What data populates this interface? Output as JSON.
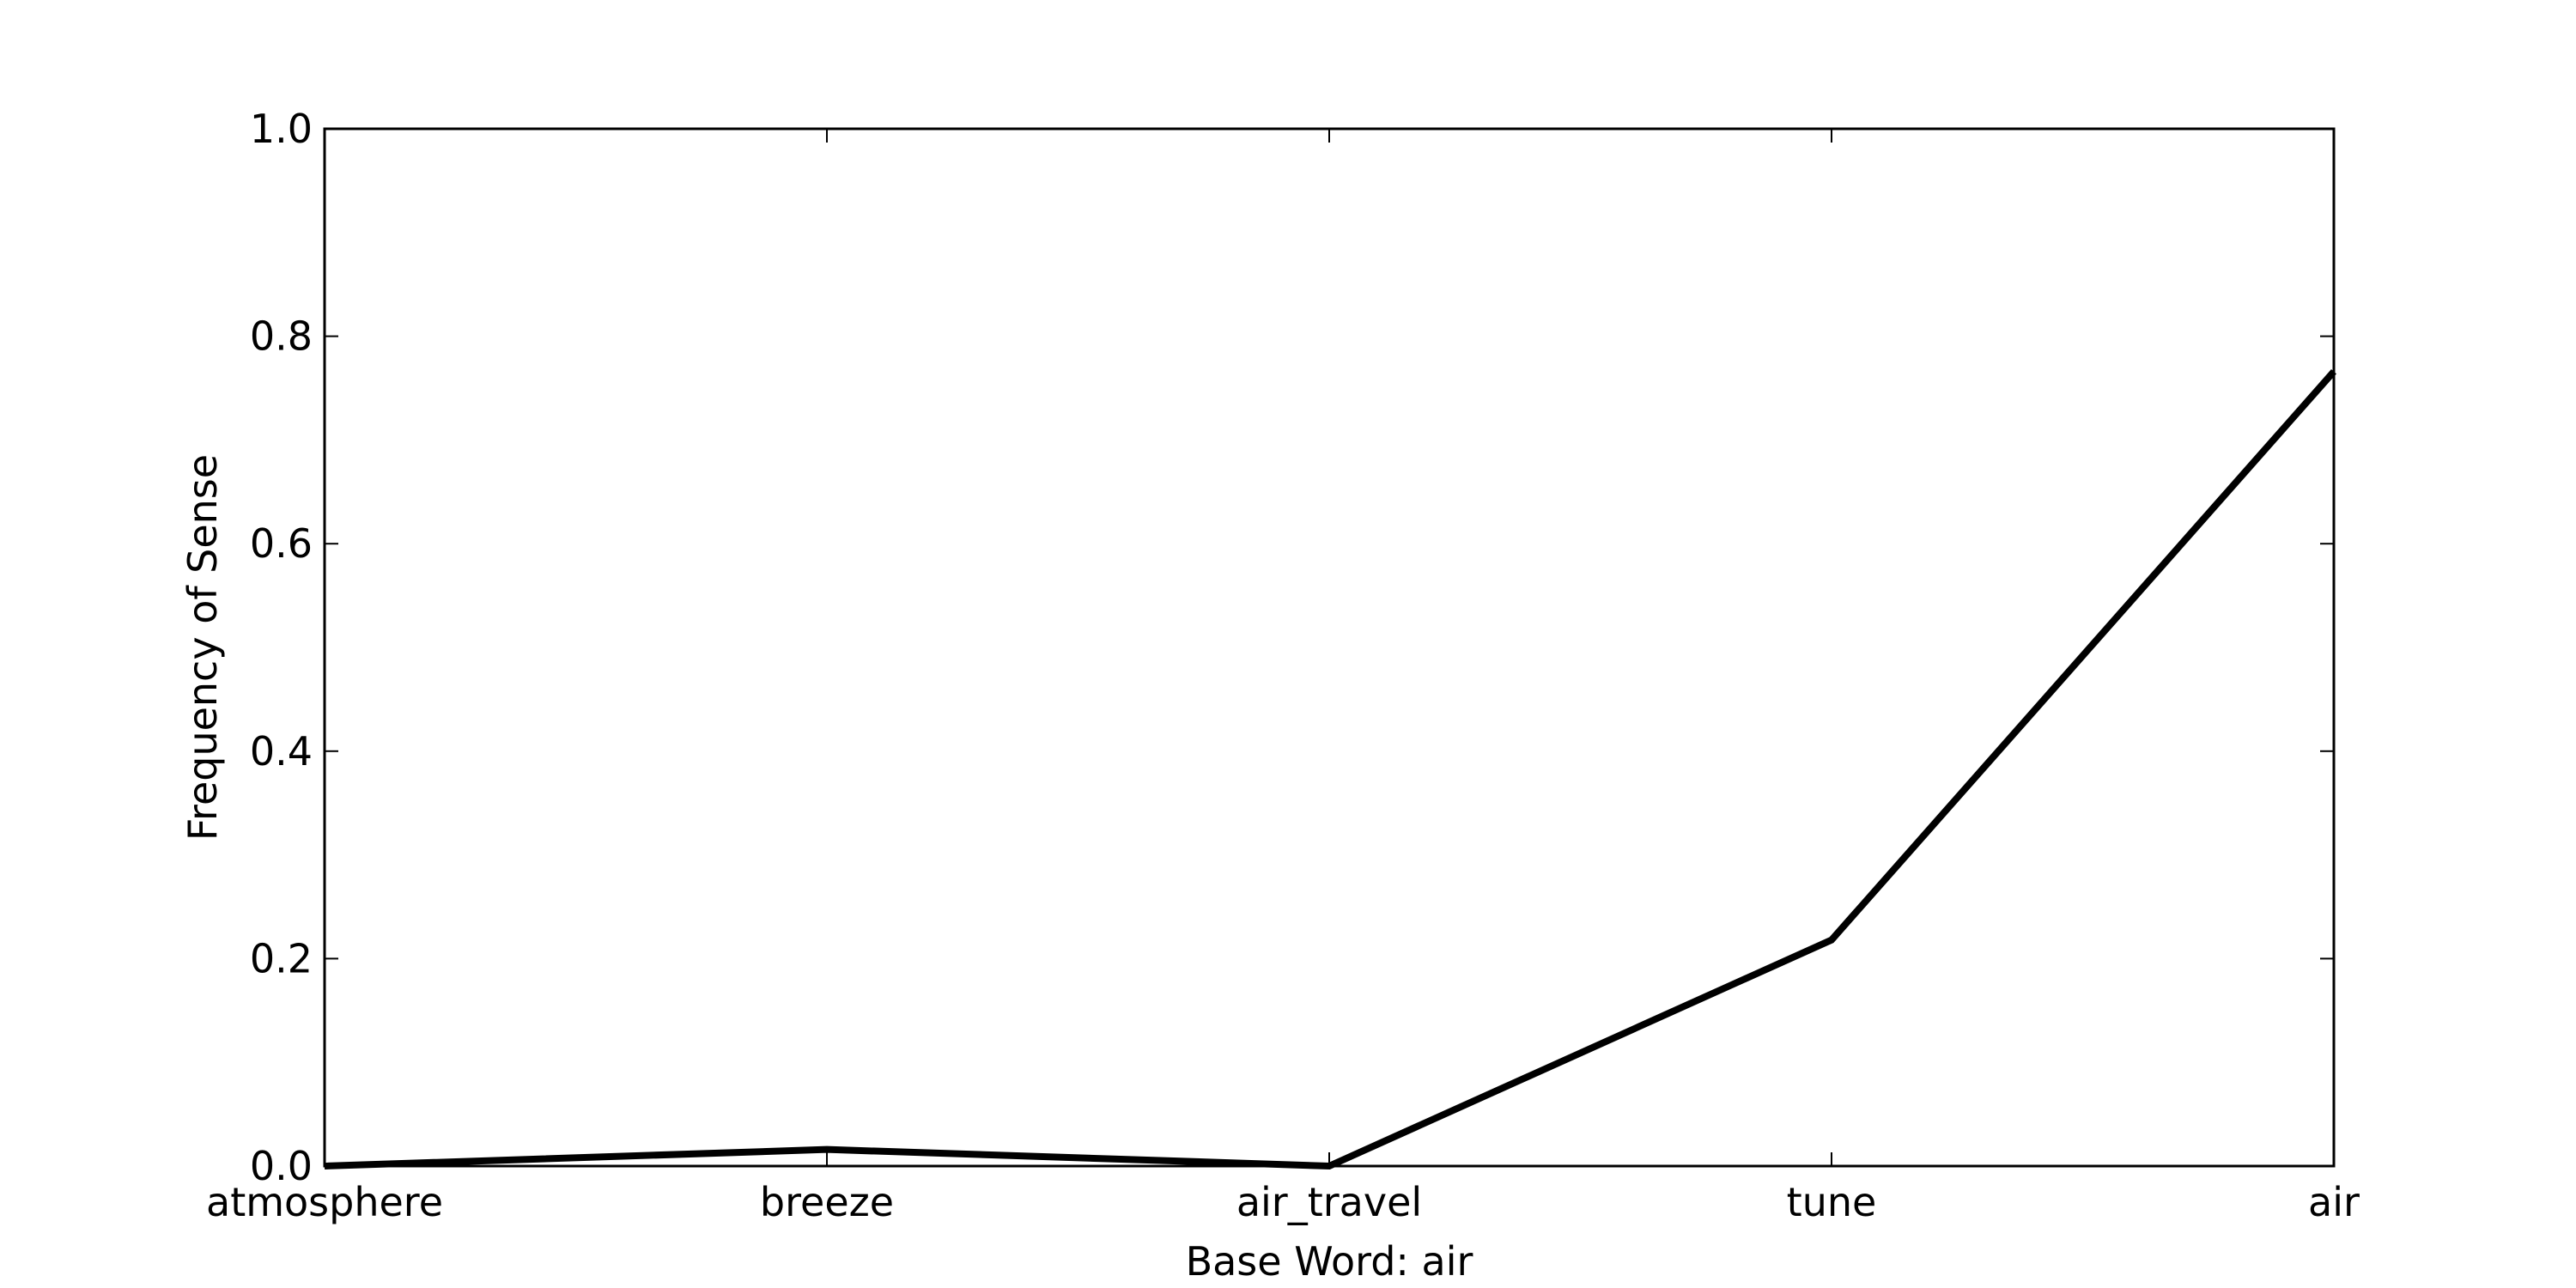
{
  "chart_data": {
    "type": "line",
    "title": "",
    "xlabel": "Base Word: air",
    "ylabel": "Frequency of Sense",
    "categories": [
      "atmosphere",
      "breeze",
      "air_travel",
      "tune",
      "air"
    ],
    "series": [
      {
        "values": [
          0.0,
          0.016,
          0.0,
          0.218,
          0.766
        ],
        "color": "#000000"
      }
    ],
    "ylim": [
      0,
      1.0
    ],
    "yticks": [
      "0.0",
      "0.2",
      "0.4",
      "0.6",
      "0.8",
      "1.0"
    ],
    "grid": false,
    "legend": "none"
  }
}
